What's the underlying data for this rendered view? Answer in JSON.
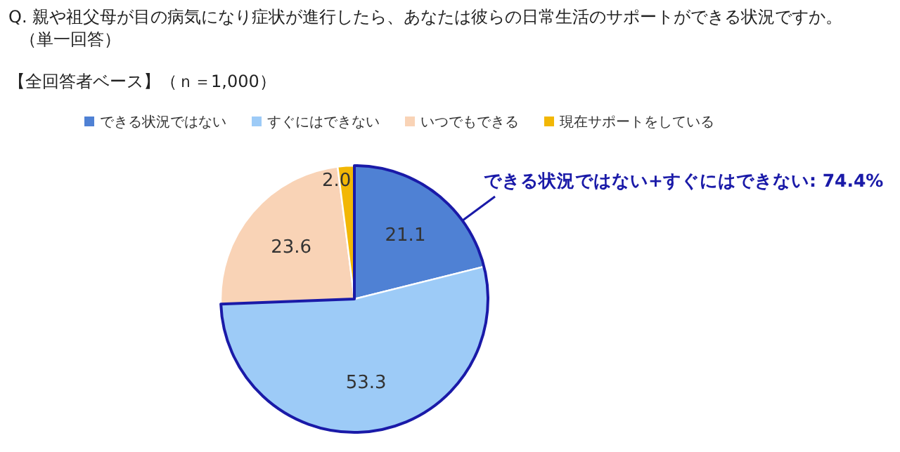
{
  "chart_data": {
    "type": "pie",
    "title": "Q. 親や祖父母が目の病気になり症状が進行したら、あなたは彼らの日常生活のサポートができる状況ですか。（単一回答）",
    "subtitle": "【全回答者ベース】（ｎ＝1,000）",
    "categories": [
      "できる状況ではない",
      "すぐにはできない",
      "いつでもできる",
      "現在サポートをしている"
    ],
    "values": [
      21.1,
      53.3,
      23.6,
      2.0
    ],
    "value_labels": [
      "21.1",
      "53.3",
      "23.6",
      "2.0"
    ],
    "colors": [
      "#4f81d4",
      "#9dcbf7",
      "#f9d3b6",
      "#f2b705"
    ],
    "legend": "top",
    "annotations": [
      "できる状況ではない+すぐにはできない:  74.4%"
    ]
  }
}
